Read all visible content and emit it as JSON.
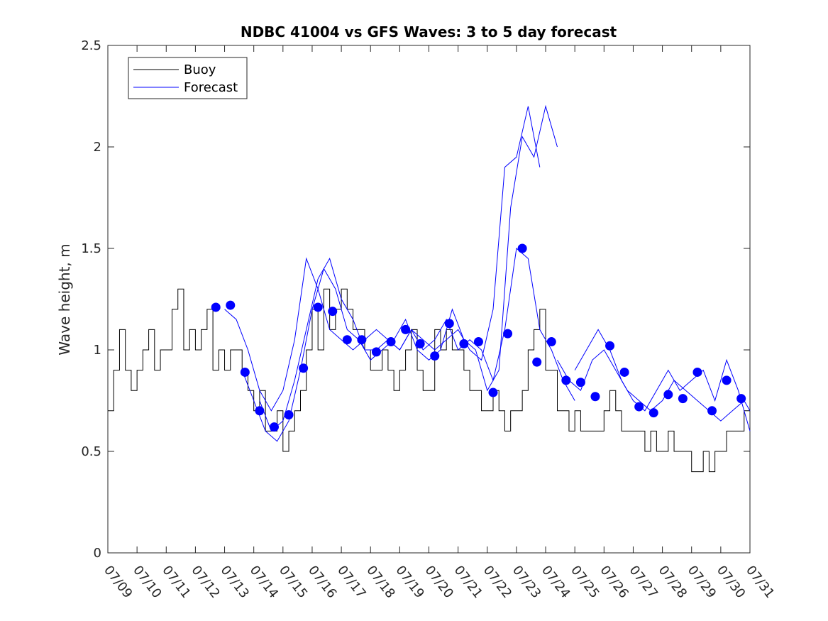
{
  "chart_data": {
    "type": "line",
    "title": "NDBC 41004 vs GFS Waves: 3 to 5 day forecast",
    "xlabel": "",
    "ylabel": "Wave height, m",
    "xlim": [
      9,
      31
    ],
    "ylim": [
      0,
      2.5
    ],
    "xticks": [
      "07/09",
      "07/10",
      "07/11",
      "07/12",
      "07/13",
      "07/14",
      "07/15",
      "07/16",
      "07/17",
      "07/18",
      "07/19",
      "07/20",
      "07/21",
      "07/22",
      "07/23",
      "07/24",
      "07/25",
      "07/26",
      "07/27",
      "07/28",
      "07/29",
      "07/30",
      "07/31"
    ],
    "yticks": [
      "0",
      "0.5",
      "1",
      "1.5",
      "2",
      "2.5"
    ],
    "legend_position": "top-left",
    "colors": {
      "buoy": "#000000",
      "forecast": "#0000ff",
      "markers": "#0000ff"
    },
    "series": [
      {
        "name": "Buoy",
        "style": "line",
        "x": [
          9.0,
          9.2,
          9.4,
          9.6,
          9.8,
          10.0,
          10.2,
          10.4,
          10.6,
          10.8,
          11.0,
          11.2,
          11.4,
          11.6,
          11.8,
          12.0,
          12.2,
          12.4,
          12.6,
          12.8,
          13.0,
          13.2,
          13.4,
          13.6,
          13.8,
          14.0,
          14.2,
          14.4,
          14.6,
          14.8,
          15.0,
          15.2,
          15.4,
          15.6,
          15.8,
          16.0,
          16.2,
          16.4,
          16.6,
          16.8,
          17.0,
          17.2,
          17.4,
          17.6,
          17.8,
          18.0,
          18.2,
          18.4,
          18.6,
          18.8,
          19.0,
          19.2,
          19.4,
          19.6,
          19.8,
          20.0,
          20.2,
          20.4,
          20.6,
          20.8,
          21.0,
          21.2,
          21.4,
          21.6,
          21.8,
          22.0,
          22.2,
          22.4,
          22.6,
          22.8,
          23.0,
          23.2,
          23.4,
          23.6,
          23.8,
          24.0,
          24.2,
          24.4,
          24.6,
          24.8,
          25.0,
          25.2,
          25.4,
          25.6,
          25.8,
          26.0,
          26.2,
          26.4,
          26.6,
          26.8,
          27.0,
          27.2,
          27.4,
          27.6,
          27.8,
          28.0,
          28.2,
          28.4,
          28.6,
          28.8,
          29.0,
          29.2,
          29.4,
          29.6,
          29.8,
          30.0,
          30.2,
          30.4,
          30.6,
          30.8,
          31.0
        ],
        "values": [
          0.7,
          0.9,
          1.1,
          0.9,
          0.8,
          0.9,
          1.0,
          1.1,
          0.9,
          1.0,
          1.0,
          1.2,
          1.3,
          1.0,
          1.1,
          1.0,
          1.1,
          1.2,
          0.9,
          1.0,
          0.9,
          1.0,
          1.0,
          0.9,
          0.8,
          0.7,
          0.8,
          0.6,
          0.6,
          0.7,
          0.5,
          0.6,
          0.7,
          0.8,
          1.0,
          1.2,
          1.0,
          1.3,
          1.1,
          1.2,
          1.3,
          1.2,
          1.1,
          1.1,
          1.0,
          0.9,
          0.9,
          1.0,
          0.9,
          0.8,
          0.9,
          1.0,
          1.1,
          0.9,
          0.8,
          0.8,
          1.1,
          1.0,
          1.1,
          1.0,
          1.0,
          0.9,
          0.8,
          0.8,
          0.7,
          0.7,
          0.8,
          0.7,
          0.6,
          0.7,
          0.7,
          0.8,
          1.0,
          1.1,
          1.2,
          0.9,
          0.9,
          0.7,
          0.7,
          0.6,
          0.7,
          0.6,
          0.6,
          0.6,
          0.6,
          0.7,
          0.8,
          0.7,
          0.6,
          0.6,
          0.6,
          0.6,
          0.5,
          0.6,
          0.5,
          0.5,
          0.6,
          0.5,
          0.5,
          0.5,
          0.4,
          0.4,
          0.5,
          0.4,
          0.5,
          0.5,
          0.6,
          0.6,
          0.6,
          0.7,
          0.7
        ]
      },
      {
        "name": "Forecast",
        "style": "line",
        "x": [
          13.0,
          13.4,
          13.8,
          14.2,
          14.6,
          15.0,
          15.4,
          15.8,
          16.2,
          16.6,
          17.0,
          17.4,
          17.8,
          18.2,
          18.6,
          19.0,
          19.4,
          19.8,
          20.2,
          20.6,
          21.0,
          21.4,
          21.8,
          22.2,
          22.6,
          23.0,
          23.4,
          23.8
        ],
        "values": [
          1.2,
          1.15,
          1.0,
          0.8,
          0.7,
          0.8,
          1.05,
          1.45,
          1.3,
          1.1,
          1.05,
          1.0,
          1.05,
          1.1,
          1.05,
          1.0,
          1.1,
          1.05,
          1.0,
          1.05,
          1.1,
          1.0,
          0.95,
          1.2,
          1.9,
          1.95,
          2.2,
          1.9
        ]
      },
      {
        "style": "line",
        "x": [
          13.6,
          14.0,
          14.4,
          14.8,
          15.2,
          15.6,
          16.0,
          16.4,
          16.8,
          17.2,
          17.6,
          18.0,
          18.4,
          18.8,
          19.2,
          19.6,
          20.0,
          20.4,
          20.8,
          21.2,
          21.6,
          22.0,
          22.4,
          22.8,
          23.2,
          23.6,
          24.0,
          24.4
        ],
        "values": [
          0.9,
          0.75,
          0.6,
          0.55,
          0.65,
          0.9,
          1.2,
          1.4,
          1.3,
          1.1,
          1.05,
          0.95,
          1.0,
          1.05,
          1.15,
          1.0,
          0.95,
          1.0,
          1.2,
          1.05,
          1.0,
          0.8,
          0.9,
          1.7,
          2.05,
          1.95,
          2.2,
          2.0
        ]
      },
      {
        "style": "line",
        "x": [
          14.2,
          14.6,
          15.0,
          15.4,
          15.8,
          16.2,
          16.6,
          17.0,
          17.4,
          17.8,
          18.2,
          18.6,
          19.0,
          19.4,
          19.8,
          20.2,
          20.6,
          21.0,
          21.4,
          21.8,
          22.2,
          22.6,
          23.0,
          23.4,
          23.8,
          24.2,
          24.6,
          25.0
        ],
        "values": [
          0.75,
          0.6,
          0.65,
          0.85,
          1.1,
          1.35,
          1.45,
          1.25,
          1.15,
          1.0,
          1.0,
          1.05,
          1.0,
          1.1,
          1.0,
          1.05,
          1.15,
          1.0,
          1.05,
          1.0,
          0.85,
          1.1,
          1.5,
          1.45,
          1.1,
          1.0,
          0.85,
          0.75
        ]
      },
      {
        "style": "line",
        "x": [
          24.4,
          24.8,
          25.2,
          25.6,
          26.0,
          26.4,
          26.8,
          27.2,
          27.6,
          28.0,
          28.4,
          28.8,
          29.2,
          29.6,
          30.0,
          30.4,
          30.8,
          31.0
        ],
        "values": [
          0.95,
          0.85,
          0.8,
          0.95,
          1.0,
          0.9,
          0.8,
          0.75,
          0.7,
          0.75,
          0.85,
          0.8,
          0.75,
          0.7,
          0.65,
          0.7,
          0.75,
          0.7
        ]
      },
      {
        "style": "line",
        "x": [
          25.0,
          25.4,
          25.8,
          26.2,
          26.6,
          27.0,
          27.4,
          27.8,
          28.2,
          28.6,
          29.0,
          29.4,
          29.8,
          30.2,
          30.6,
          31.0
        ],
        "values": [
          0.9,
          1.0,
          1.1,
          1.0,
          0.85,
          0.75,
          0.7,
          0.8,
          0.9,
          0.8,
          0.85,
          0.9,
          0.75,
          0.95,
          0.8,
          0.6
        ]
      },
      {
        "name": "",
        "style": "markers",
        "x": [
          12.7,
          13.2,
          13.7,
          14.2,
          14.7,
          15.2,
          15.7,
          16.2,
          16.7,
          17.2,
          17.7,
          18.2,
          18.7,
          19.2,
          19.7,
          20.2,
          20.7,
          21.2,
          21.7,
          22.2,
          22.7,
          23.2,
          23.7,
          24.2,
          24.7,
          25.2,
          25.7,
          26.2,
          26.7,
          27.2,
          27.7,
          28.2,
          28.7,
          29.2,
          29.7,
          30.2,
          30.7
        ],
        "values": [
          1.21,
          1.22,
          0.89,
          0.7,
          0.62,
          0.68,
          0.91,
          1.21,
          1.19,
          1.05,
          1.05,
          0.99,
          1.04,
          1.1,
          1.03,
          0.97,
          1.13,
          1.03,
          1.04,
          0.79,
          1.08,
          1.5,
          0.94,
          1.04,
          0.85,
          0.84,
          0.77,
          1.02,
          0.89,
          0.72,
          0.69,
          0.78,
          0.76,
          0.89,
          0.7,
          0.85,
          0.76
        ]
      }
    ]
  }
}
